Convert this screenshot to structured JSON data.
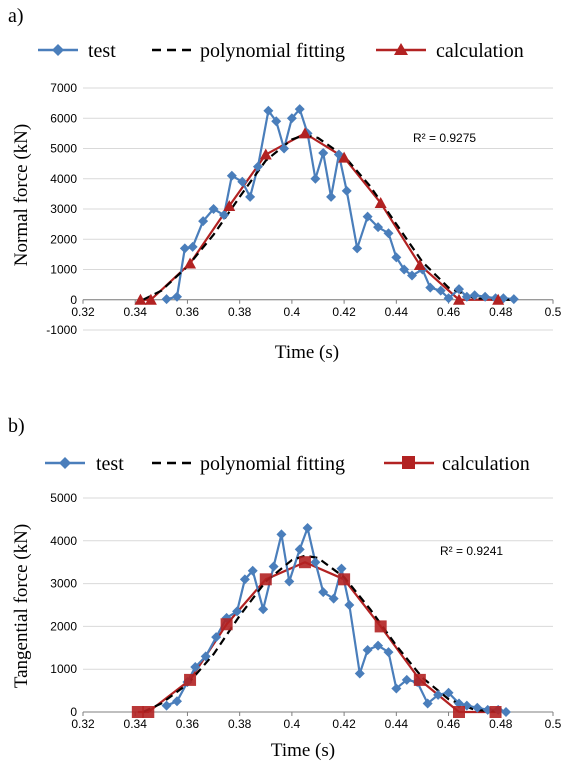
{
  "chart_data": [
    {
      "type": "line",
      "panel_label": "a)",
      "legend": [
        "test",
        "polynomial fitting",
        "calculation"
      ],
      "xlabel": "Time (s)",
      "ylabel": "Normal force (kN)",
      "xlim": [
        0.32,
        0.5
      ],
      "ylim": [
        -1000,
        7000
      ],
      "xticks": [
        "0.32",
        "0.34",
        "0.36",
        "0.38",
        "0.4",
        "0.42",
        "0.44",
        "0.46",
        "0.48",
        "0.5"
      ],
      "yticks": [
        "-1000",
        "0",
        "1000",
        "2000",
        "3000",
        "4000",
        "5000",
        "6000",
        "7000"
      ],
      "annotation": "R² = 0.9275",
      "grid": "horizontal",
      "legend_position": "top",
      "colors": {
        "test": "#4a7ebb",
        "fit": "#000000",
        "calc": "#b22222",
        "grid": "#d9d9d9"
      },
      "series": [
        {
          "name": "test",
          "x": [
            0.352,
            0.356,
            0.359,
            0.362,
            0.366,
            0.37,
            0.374,
            0.377,
            0.381,
            0.384,
            0.387,
            0.391,
            0.394,
            0.397,
            0.4,
            0.403,
            0.406,
            0.409,
            0.412,
            0.415,
            0.418,
            0.421,
            0.425,
            0.429,
            0.433,
            0.437,
            0.44,
            0.443,
            0.446,
            0.45,
            0.453,
            0.457,
            0.46,
            0.464,
            0.467,
            0.47,
            0.474,
            0.478,
            0.481,
            0.485
          ],
          "y": [
            20,
            100,
            1700,
            1750,
            2600,
            3000,
            2800,
            4100,
            3900,
            3400,
            4400,
            6250,
            5900,
            5000,
            6000,
            6300,
            5500,
            4000,
            4850,
            3400,
            4800,
            3600,
            1700,
            2750,
            2400,
            2200,
            1400,
            1000,
            800,
            1000,
            400,
            300,
            50,
            350,
            100,
            150,
            100,
            50,
            50,
            20
          ]
        },
        {
          "name": "polynomial fitting",
          "x": [
            0.343,
            0.35,
            0.36,
            0.37,
            0.38,
            0.39,
            0.4,
            0.405,
            0.41,
            0.42,
            0.43,
            0.44,
            0.45,
            0.46,
            0.47,
            0.48,
            0.485
          ],
          "y": [
            0,
            300,
            1100,
            2150,
            3400,
            4600,
            5300,
            5450,
            5350,
            4750,
            3750,
            2500,
            1250,
            400,
            50,
            0,
            0
          ]
        },
        {
          "name": "calculation",
          "x": [
            0.342,
            0.346,
            0.361,
            0.376,
            0.39,
            0.405,
            0.42,
            0.434,
            0.449,
            0.464,
            0.479
          ],
          "y": [
            0,
            0,
            1200,
            3100,
            4800,
            5500,
            4700,
            3200,
            1150,
            0,
            0
          ]
        }
      ]
    },
    {
      "type": "line",
      "panel_label": "b)",
      "legend": [
        "test",
        "polynomial fitting",
        "calculation"
      ],
      "xlabel": "Time (s)",
      "ylabel": "Tangential force (kN)",
      "xlim": [
        0.32,
        0.5
      ],
      "ylim": [
        0,
        5000
      ],
      "xticks": [
        "0.32",
        "0.34",
        "0.36",
        "0.38",
        "0.4",
        "0.42",
        "0.44",
        "0.46",
        "0.48",
        "0.5"
      ],
      "yticks": [
        "0",
        "1000",
        "2000",
        "3000",
        "4000",
        "5000"
      ],
      "annotation": "R² = 0.9241",
      "grid": "horizontal",
      "legend_position": "top",
      "colors": {
        "test": "#4a7ebb",
        "fit": "#000000",
        "calc": "#b22222",
        "grid": "#d9d9d9"
      },
      "series": [
        {
          "name": "test",
          "x": [
            0.352,
            0.356,
            0.36,
            0.363,
            0.367,
            0.371,
            0.375,
            0.379,
            0.382,
            0.385,
            0.389,
            0.393,
            0.396,
            0.399,
            0.403,
            0.406,
            0.409,
            0.412,
            0.416,
            0.419,
            0.422,
            0.426,
            0.429,
            0.433,
            0.437,
            0.44,
            0.444,
            0.448,
            0.452,
            0.456,
            0.46,
            0.464,
            0.467,
            0.471,
            0.475,
            0.479,
            0.482
          ],
          "y": [
            150,
            250,
            700,
            1050,
            1300,
            1750,
            2200,
            2350,
            3100,
            3300,
            2400,
            3400,
            4150,
            3050,
            3800,
            4300,
            3500,
            2800,
            2650,
            3350,
            2500,
            900,
            1450,
            1550,
            1400,
            550,
            750,
            700,
            200,
            400,
            450,
            200,
            150,
            100,
            50,
            50,
            0
          ]
        },
        {
          "name": "polynomial fitting",
          "x": [
            0.343,
            0.35,
            0.36,
            0.37,
            0.38,
            0.39,
            0.4,
            0.405,
            0.41,
            0.42,
            0.43,
            0.44,
            0.45,
            0.46,
            0.47,
            0.48,
            0.482
          ],
          "y": [
            0,
            200,
            650,
            1350,
            2250,
            3050,
            3550,
            3650,
            3600,
            3150,
            2400,
            1550,
            800,
            300,
            50,
            0,
            0
          ]
        },
        {
          "name": "calculation",
          "x": [
            0.341,
            0.345,
            0.361,
            0.375,
            0.39,
            0.405,
            0.42,
            0.434,
            0.449,
            0.464,
            0.478
          ],
          "y": [
            0,
            0,
            750,
            2050,
            3100,
            3500,
            3100,
            2000,
            750,
            0,
            0
          ]
        }
      ]
    }
  ]
}
